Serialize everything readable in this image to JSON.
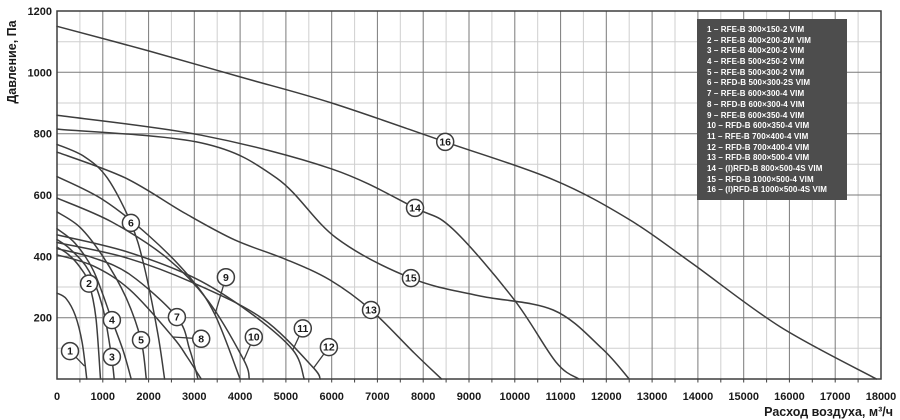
{
  "chart_data": {
    "type": "line",
    "title": "",
    "xlabel": "Расход воздуха, м³/ч",
    "ylabel": "Давление, Па",
    "xlim": [
      0,
      18000
    ],
    "ylim": [
      0,
      1200
    ],
    "x_major_step": 1000,
    "x_minor_step": 500,
    "y_major_step": 200,
    "y_minor_step": 100,
    "grid": "major+minor",
    "legend_position": "top-right",
    "series": [
      {
        "num": 1,
        "name": "RFE-B 300×150-2 VIM",
        "points": [
          [
            0,
            280
          ],
          [
            200,
            262
          ],
          [
            400,
            207
          ],
          [
            550,
            118
          ],
          [
            650,
            0
          ]
        ],
        "label_at": [
          285,
          91
        ],
        "leader_to": [
          600,
          42
        ]
      },
      {
        "num": 2,
        "name": "RFE-B 400×200-2M VIM",
        "points": [
          [
            0,
            430
          ],
          [
            250,
            406
          ],
          [
            500,
            365
          ],
          [
            700,
            311
          ],
          [
            850,
            200
          ],
          [
            950,
            0
          ]
        ],
        "label_at": [
          700,
          311
        ],
        "leader_to": null
      },
      {
        "num": 3,
        "name": "RFE-B 400×200-2 VIM",
        "points": [
          [
            0,
            455
          ],
          [
            300,
            422
          ],
          [
            700,
            352
          ],
          [
            1000,
            232
          ],
          [
            1185,
            80
          ],
          [
            1250,
            0
          ]
        ],
        "label_at": [
          1200,
          72
        ],
        "leader_to": null
      },
      {
        "num": 4,
        "name": "RFE-B 500×250-2 VIM",
        "points": [
          [
            0,
            490
          ],
          [
            400,
            442
          ],
          [
            800,
            352
          ],
          [
            1200,
            192
          ],
          [
            1450,
            90
          ],
          [
            1620,
            0
          ]
        ],
        "label_at": [
          1200,
          192
        ],
        "leader_to": null
      },
      {
        "num": 5,
        "name": "RFE-B 500×300-2 VIM",
        "points": [
          [
            0,
            545
          ],
          [
            500,
            495
          ],
          [
            1000,
            400
          ],
          [
            1500,
            268
          ],
          [
            1835,
            127
          ],
          [
            1950,
            0
          ]
        ],
        "label_at": [
          1835,
          127
        ],
        "leader_to": null
      },
      {
        "num": 6,
        "name": "RFD-B 500×300-2S VIM",
        "points": [
          [
            0,
            765
          ],
          [
            600,
            725
          ],
          [
            1100,
            655
          ],
          [
            1615,
            509
          ],
          [
            1900,
            370
          ],
          [
            2200,
            150
          ],
          [
            2350,
            0
          ]
        ],
        "label_at": [
          1615,
          509
        ],
        "leader_to": null
      },
      {
        "num": 7,
        "name": "RFE-B 600×300-4 VIM",
        "points": [
          [
            0,
            425
          ],
          [
            800,
            395
          ],
          [
            1600,
            340
          ],
          [
            2620,
            202
          ],
          [
            2900,
            95
          ],
          [
            3080,
            0
          ]
        ],
        "label_at": [
          2620,
          202
        ],
        "leader_to": null
      },
      {
        "num": 8,
        "name": "RFD-B 600×300-4 VIM",
        "points": [
          [
            0,
            405
          ],
          [
            800,
            368
          ],
          [
            1600,
            290
          ],
          [
            2530,
            137
          ],
          [
            2850,
            70
          ],
          [
            3150,
            0
          ]
        ],
        "label_at": [
          3150,
          131
        ],
        "leader_to": [
          2530,
          137
        ]
      },
      {
        "num": 9,
        "name": "RFE-B 600×350-4 VIM",
        "points": [
          [
            0,
            660
          ],
          [
            1000,
            585
          ],
          [
            2000,
            468
          ],
          [
            2900,
            332
          ],
          [
            3450,
            210
          ],
          [
            4000,
            0
          ]
        ],
        "label_at": [
          3690,
          332
        ],
        "leader_to": [
          3450,
          210
        ]
      },
      {
        "num": 10,
        "name": "RFD-B 600×350-4 VIM",
        "points": [
          [
            0,
            590
          ],
          [
            1200,
            512
          ],
          [
            2400,
            395
          ],
          [
            3300,
            255
          ],
          [
            4080,
            62
          ],
          [
            4200,
            0
          ]
        ],
        "label_at": [
          4300,
          137
        ],
        "leader_to": [
          4080,
          62
        ]
      },
      {
        "num": 11,
        "name": "RFE-B 700×400-4 VIM",
        "points": [
          [
            0,
            470
          ],
          [
            1500,
            416
          ],
          [
            3000,
            330
          ],
          [
            4200,
            218
          ],
          [
            5150,
            95
          ],
          [
            5400,
            0
          ]
        ],
        "label_at": [
          5370,
          165
        ],
        "leader_to": [
          5150,
          95
        ]
      },
      {
        "num": 12,
        "name": "RFD-B 700×400-4 VIM",
        "points": [
          [
            0,
            445
          ],
          [
            1500,
            396
          ],
          [
            3000,
            312
          ],
          [
            4500,
            196
          ],
          [
            5580,
            40
          ],
          [
            5750,
            0
          ]
        ],
        "label_at": [
          5940,
          104
        ],
        "leader_to": [
          5600,
          35
        ]
      },
      {
        "num": 13,
        "name": "RFD-B 800×500-4 VIM",
        "points": [
          [
            0,
            740
          ],
          [
            1500,
            655
          ],
          [
            2800,
            540
          ],
          [
            3890,
            453
          ],
          [
            5000,
            390
          ],
          [
            5960,
            323
          ],
          [
            6860,
            225
          ],
          [
            7800,
            85
          ],
          [
            8400,
            0
          ]
        ],
        "label_at": [
          6860,
          225
        ],
        "leader_to": null
      },
      {
        "num": 14,
        "name": "(I)RFD-B 800×500-4S VIM",
        "points": [
          [
            0,
            860
          ],
          [
            3150,
            795
          ],
          [
            6000,
            685
          ],
          [
            7820,
            558
          ],
          [
            8640,
            490
          ],
          [
            9980,
            260
          ],
          [
            10900,
            55
          ],
          [
            11400,
            0
          ]
        ],
        "label_at": [
          7820,
          558
        ],
        "leader_to": null
      },
      {
        "num": 15,
        "name": "RFD-B 1000×500-4 VIM",
        "points": [
          [
            0,
            815
          ],
          [
            3150,
            770
          ],
          [
            4800,
            655
          ],
          [
            6100,
            460
          ],
          [
            7730,
            329
          ],
          [
            9200,
            272
          ],
          [
            10840,
            225
          ],
          [
            11900,
            100
          ],
          [
            12500,
            0
          ]
        ],
        "label_at": [
          7730,
          329
        ],
        "leader_to": null
      },
      {
        "num": 16,
        "name": "(I)RFD-B 1000×500-4S VIM",
        "points": [
          [
            0,
            1150
          ],
          [
            2000,
            1070
          ],
          [
            4000,
            985
          ],
          [
            6000,
            900
          ],
          [
            8480,
            773
          ],
          [
            10840,
            650
          ],
          [
            12500,
            520
          ],
          [
            13850,
            380
          ],
          [
            15800,
            170
          ],
          [
            17900,
            0
          ]
        ],
        "label_at": [
          8480,
          773
        ],
        "leader_to": null
      }
    ]
  },
  "axes": {
    "x_ticks": [
      0,
      1000,
      2000,
      3000,
      4000,
      5000,
      6000,
      7000,
      8000,
      9000,
      10000,
      11000,
      12000,
      13000,
      14000,
      15000,
      16000,
      17000,
      18000
    ],
    "y_ticks": [
      200,
      400,
      600,
      800,
      1000,
      1200
    ]
  },
  "legend": {
    "items": [
      "1 – RFE-B 300×150-2 VIM",
      "2 – RFE-B 400×200-2M VIM",
      "3 – RFE-B 400×200-2 VIM",
      "4 – RFE-B 500×250-2 VIM",
      "5 – RFE-B 500×300-2 VIM",
      "6 – RFD-B 500×300-2S VIM",
      "7 – RFE-B 600×300-4 VIM",
      "8 – RFD-B 600×300-4 VIM",
      "9 – RFE-B 600×350-4 VIM",
      "10 – RFD-B 600×350-4 VIM",
      "11 – RFE-B 700×400-4 VIM",
      "12 – RFD-B 700×400-4 VIM",
      "13 – RFD-B 800×500-4 VIM",
      "14 – (I)RFD-B 800×500-4S VIM",
      "15 – RFD-B 1000×500-4 VIM",
      "16 – (I)RFD-B 1000×500-4S VIM"
    ]
  },
  "colors": {
    "curve": "#3d3d3d",
    "grid_major": "#7a7a7a",
    "grid_minor": "#cfcfcf",
    "border": "#3d3d3d",
    "legend_bg": "#4d4d4d",
    "legend_text": "#ffffff",
    "text": "#1a1a1a",
    "background": "#ffffff"
  }
}
